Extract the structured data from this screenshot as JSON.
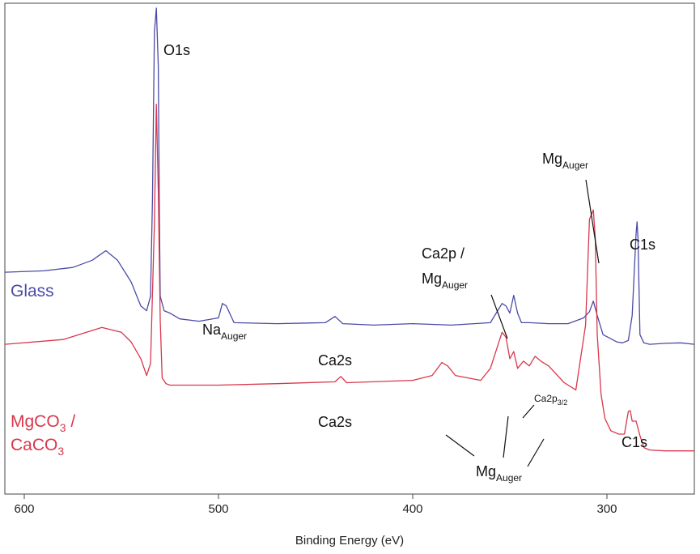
{
  "chart_data": {
    "type": "line",
    "title": "",
    "xlabel": "Binding Energy (eV)",
    "ylabel": "",
    "x_reversed": true,
    "xlim": [
      610,
      255
    ],
    "ylim": [
      0,
      100
    ],
    "x_ticks": [
      600,
      500,
      400,
      300
    ],
    "x_tick_labels": [
      "600",
      "500",
      "400",
      "300"
    ],
    "grid": false,
    "series": [
      {
        "name": "Glass",
        "color": "#4b4ba8",
        "x": [
          610,
          590,
          575,
          565,
          558,
          552,
          545,
          540,
          537,
          535,
          534,
          533,
          532,
          531,
          530.5,
          530,
          528,
          525,
          520,
          510,
          500,
          498,
          496,
          492,
          470,
          445,
          440,
          436,
          420,
          400,
          380,
          360,
          354,
          352,
          350,
          348,
          346,
          344,
          340,
          330,
          320,
          312,
          309,
          307,
          305,
          302,
          295,
          292,
          289,
          287,
          285,
          284.5,
          284,
          283,
          281,
          278,
          270,
          262,
          255
        ],
        "y": [
          45,
          45.3,
          46,
          47.5,
          49.5,
          47.5,
          43,
          38,
          37,
          40,
          60,
          95,
          100,
          88,
          60,
          40,
          37,
          36.5,
          35.3,
          34.8,
          35.5,
          38.5,
          38,
          34.5,
          34.3,
          34.5,
          35.8,
          34.3,
          34,
          34.3,
          34,
          34.5,
          38.5,
          38,
          36.5,
          40.2,
          36.5,
          34.5,
          34.5,
          34.3,
          34.3,
          35.5,
          36.8,
          39,
          36,
          32,
          30.5,
          30.3,
          30.8,
          36,
          53,
          55.5,
          52,
          32,
          30.3,
          30,
          30.2,
          30.3,
          30
        ]
      },
      {
        "name": "MgCO3 / CaCO3",
        "color": "#d9374b",
        "x": [
          610,
          580,
          560,
          550,
          545,
          540,
          537,
          535,
          533,
          532,
          531,
          530,
          529,
          527,
          525,
          500,
          470,
          440,
          437,
          434,
          400,
          390,
          385,
          382,
          378,
          365,
          360,
          356,
          354,
          352,
          350,
          348,
          346,
          343,
          340,
          337,
          334,
          330,
          322,
          316,
          311,
          309,
          307,
          306,
          305,
          303,
          301,
          298,
          294,
          291,
          289,
          288,
          287,
          285,
          283,
          281,
          278,
          270,
          262,
          255
        ],
        "y": [
          30,
          31,
          33.5,
          32.5,
          30.5,
          27,
          23.5,
          26,
          55,
          80,
          62,
          35,
          23,
          21.8,
          21.5,
          21.5,
          21.8,
          22.2,
          23.3,
          22,
          22.5,
          23.5,
          26.2,
          25.5,
          23.5,
          22.5,
          25,
          30,
          32.5,
          31.5,
          27,
          28.5,
          25,
          26.5,
          25.5,
          27.5,
          26.5,
          25.5,
          22,
          20.5,
          34,
          56,
          58,
          52,
          32,
          19.5,
          14.5,
          12,
          11.3,
          11.3,
          16,
          16.2,
          14,
          14,
          11,
          8.5,
          8,
          7.8,
          7.8,
          7.8
        ]
      }
    ],
    "annotations": {
      "o1s": "O1s",
      "na_auger_main": "Na",
      "na_auger_sub": "Auger",
      "ca2s_glass": "Ca2s",
      "ca2p_mg_line1": "Ca2p /",
      "ca2p_mg_line2_main": "Mg",
      "ca2p_mg_line2_sub": "Auger",
      "mg_auger_top_main": "Mg",
      "mg_auger_top_sub": "Auger",
      "c1s_glass": "C1s",
      "ca2s_carb": "Ca2s",
      "ca2p32_main": "Ca2p",
      "ca2p32_sub": "3/2",
      "mg_auger_bottom_main": "Mg",
      "mg_auger_bottom_sub": "Auger",
      "c1s_carb": "C1s"
    },
    "legend": {
      "glass": "Glass",
      "carb_line1_a": "MgCO",
      "carb_line1_sub": "3",
      "carb_line1_b": " /",
      "carb_line2_a": "CaCO",
      "carb_line2_sub": "3"
    }
  }
}
